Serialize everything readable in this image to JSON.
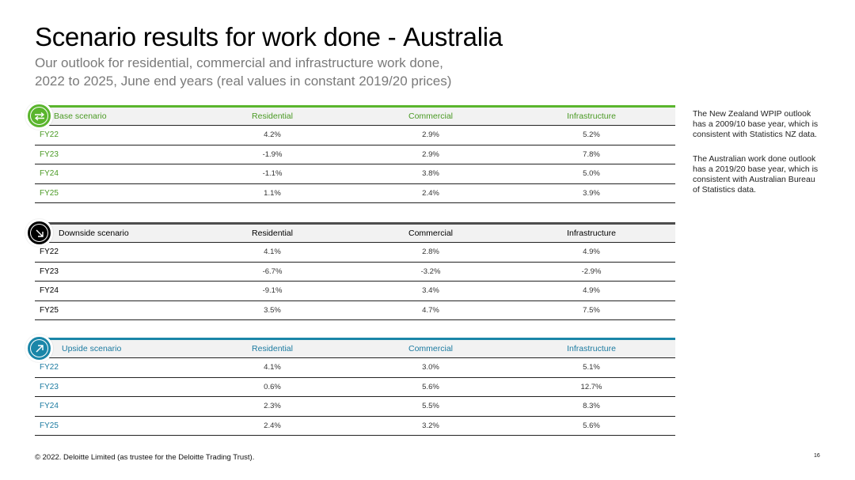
{
  "title": {
    "main": "Scenario results for work done - ",
    "highlight": "Australia"
  },
  "subtitle": {
    "line1": "Our outlook for residential, commercial and infrastructure work done,",
    "line2": "2022 to 2025, June end years (real values in constant 2019/20 prices)"
  },
  "colors": {
    "base": "#5ab52d",
    "downside": "#000000",
    "upside": "#1a86a8",
    "base_text": "#4a9a24",
    "upside_text": "#1a7aa0"
  },
  "tables": [
    {
      "name": "Base scenario",
      "icon": "swap-arrows-icon",
      "columns": [
        "Residential",
        "Commercial",
        "Infrastructure"
      ],
      "rows": [
        {
          "year": "FY22",
          "values": [
            "4.2%",
            "2.9%",
            "5.2%"
          ]
        },
        {
          "year": "FY23",
          "values": [
            "-1.9%",
            "2.9%",
            "7.8%"
          ]
        },
        {
          "year": "FY24",
          "values": [
            "-1.1%",
            "3.8%",
            "5.0%"
          ]
        },
        {
          "year": "FY25",
          "values": [
            "1.1%",
            "2.4%",
            "3.9%"
          ]
        }
      ]
    },
    {
      "name": "Downside scenario",
      "icon": "arrow-down-right-icon",
      "columns": [
        "Residential",
        "Commercial",
        "Infrastructure"
      ],
      "rows": [
        {
          "year": "FY22",
          "values": [
            "4.1%",
            "2.8%",
            "4.9%"
          ]
        },
        {
          "year": "FY23",
          "values": [
            "-6.7%",
            "-3.2%",
            "-2.9%"
          ]
        },
        {
          "year": "FY24",
          "values": [
            "-9.1%",
            "3.4%",
            "4.9%"
          ]
        },
        {
          "year": "FY25",
          "values": [
            "3.5%",
            "4.7%",
            "7.5%"
          ]
        }
      ]
    },
    {
      "name": "Upside scenario",
      "icon": "arrow-up-right-icon",
      "columns": [
        "Residential",
        "Commercial",
        "Infrastructure"
      ],
      "rows": [
        {
          "year": "FY22",
          "values": [
            "4.1%",
            "3.0%",
            "5.1%"
          ]
        },
        {
          "year": "FY23",
          "values": [
            "0.6%",
            "5.6%",
            "12.7%"
          ]
        },
        {
          "year": "FY24",
          "values": [
            "2.3%",
            "5.5%",
            "8.3%"
          ]
        },
        {
          "year": "FY25",
          "values": [
            "2.4%",
            "3.2%",
            "5.6%"
          ]
        }
      ]
    }
  ],
  "notes": {
    "nz_line1": "The New Zealand WPIP outlook",
    "nz_line2": "has a 2009/10 base year, which is",
    "nz_line3": "consistent with Statistics NZ data.",
    "au_line1": "The Australian work done outlook",
    "au_line2": "has a 2019/20 base year, which is",
    "au_line3": "consistent with Australian Bureau",
    "au_line4": "of Statistics data."
  },
  "footer": "© 2022. Deloitte Limited (as trustee for the Deloitte Trading Trust).",
  "page_number": "16"
}
